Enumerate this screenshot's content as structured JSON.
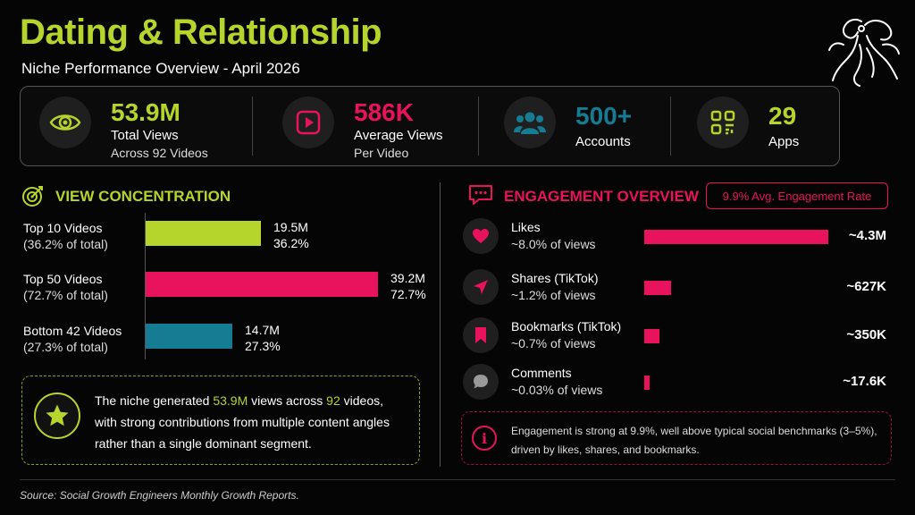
{
  "title": "Dating & Relationship",
  "subtitle": "Niche Performance Overview - April 2026",
  "colors": {
    "green": "#b5d42c",
    "pink": "#e8135c",
    "blue": "#167c93"
  },
  "stats": [
    {
      "icon": "eye-icon",
      "value": "53.9M",
      "label": "Total Views",
      "sub": "Across 92 Videos",
      "color": "#b5d42c"
    },
    {
      "icon": "play-icon",
      "value": "586K",
      "label": "Average Views",
      "sub": "Per Video",
      "color": "#e8135c"
    },
    {
      "icon": "users-icon",
      "value": "500+",
      "label": "Accounts",
      "sub": "",
      "color": "#167c93"
    },
    {
      "icon": "apps-icon",
      "value": "29",
      "label": "Apps",
      "sub": "",
      "color": "#b5d42c"
    }
  ],
  "view_concentration": {
    "title": "VIEW CONCENTRATION",
    "note_prefix": "The niche generated ",
    "note_views": "53.9M",
    "note_mid": " views across ",
    "note_videos": "92",
    "note_suffix": " videos,",
    "note_line2": "with strong contributions from multiple content angles",
    "note_line3": "rather than a single dominant segment."
  },
  "engagement": {
    "title": "ENGAGEMENT OVERVIEW",
    "badge": "9.9% Avg. Engagement Rate",
    "note_line1": "Engagement is strong at 9.9%, well above typical social benchmarks (3–5%),",
    "note_line2": "driven by likes, shares, and bookmarks."
  },
  "source": "Source: Social Growth Engineers Monthly Growth Reports.",
  "chart_data": [
    {
      "type": "bar",
      "title": "VIEW CONCENTRATION",
      "orientation": "horizontal",
      "categories": [
        "Top 10 Videos",
        "Top 50 Videos",
        "Bottom 42 Videos"
      ],
      "subs": [
        "(36.2% of total)",
        "(72.7% of total)",
        "(27.3% of total)"
      ],
      "values": [
        19.5,
        39.2,
        14.7
      ],
      "value_labels": [
        "19.5M",
        "39.2M",
        "14.7M"
      ],
      "pct_labels": [
        "36.2%",
        "72.7%",
        "27.3%"
      ],
      "colors": [
        "#b5d42c",
        "#e8135c",
        "#167c93"
      ],
      "xlim": [
        0,
        39.2
      ]
    },
    {
      "type": "bar",
      "title": "ENGAGEMENT OVERVIEW",
      "orientation": "horizontal",
      "categories": [
        "Likes",
        "Shares (TikTok)",
        "Bookmarks (TikTok)",
        "Comments"
      ],
      "subs": [
        "~8.0% of views",
        "~1.2% of views",
        "~0.7% of views",
        "~0.03% of views"
      ],
      "icons": [
        "heart-icon",
        "send-icon",
        "bookmark-icon",
        "comment-icon"
      ],
      "values": [
        4300,
        627,
        350,
        17.6
      ],
      "value_labels": [
        "~4.3M",
        "~627K",
        "~350K",
        "~17.6K"
      ],
      "color": "#e8135c",
      "xlim": [
        0,
        4300
      ]
    }
  ]
}
